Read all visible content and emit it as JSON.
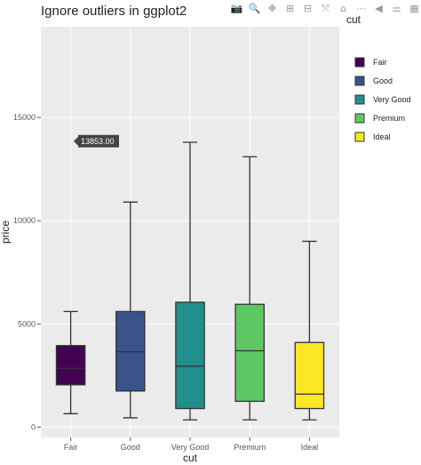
{
  "toolbar": {
    "buttons": [
      {
        "icon": "camera-icon",
        "glyph": "📷"
      },
      {
        "icon": "zoom-icon",
        "glyph": "🔍"
      },
      {
        "icon": "pan-icon",
        "glyph": "✥"
      },
      {
        "icon": "zoom-in-icon",
        "glyph": "⊞"
      },
      {
        "icon": "zoom-out-icon",
        "glyph": "⊟"
      },
      {
        "icon": "autoscale-icon",
        "glyph": "⤧"
      },
      {
        "icon": "reset-axes-icon",
        "glyph": "⌂"
      },
      {
        "icon": "spike-lines-icon",
        "glyph": "⋯"
      },
      {
        "icon": "hover-closest-icon",
        "glyph": "◀"
      },
      {
        "icon": "hover-compare-icon",
        "glyph": "⚌"
      },
      {
        "icon": "plotly-logo-icon",
        "glyph": "▦"
      }
    ]
  },
  "chart_data": {
    "type": "box",
    "title": "Ignore outliers in ggplot2",
    "xlabel": "cut",
    "ylabel": "price",
    "ylim": [
      -500,
      19400
    ],
    "yticks": [
      0,
      5000,
      10000,
      15000
    ],
    "ytick_labels": [
      "0",
      "5000",
      "10000",
      "15000"
    ],
    "grid": true,
    "legend": {
      "title": "cut",
      "placement": "right"
    },
    "tooltip": {
      "text": "13853.00",
      "category": "Fair",
      "value": 13853
    },
    "categories": [
      "Fair",
      "Good",
      "Very Good",
      "Premium",
      "Ideal"
    ],
    "boxes": [
      {
        "name": "Fair",
        "color": "#440154",
        "min": 650,
        "q1": 2050,
        "median": 2850,
        "q3": 3950,
        "max": 5600
      },
      {
        "name": "Good",
        "color": "#3B528B",
        "min": 450,
        "q1": 1750,
        "median": 3650,
        "q3": 5600,
        "max": 10900
      },
      {
        "name": "Very Good",
        "color": "#21908C",
        "min": 350,
        "q1": 900,
        "median": 2950,
        "q3": 6050,
        "max": 13800
      },
      {
        "name": "Premium",
        "color": "#5DC863",
        "min": 350,
        "q1": 1250,
        "median": 3700,
        "q3": 5950,
        "max": 13100
      },
      {
        "name": "Ideal",
        "color": "#FDE725",
        "min": 350,
        "q1": 900,
        "median": 1600,
        "q3": 4100,
        "max": 9000
      }
    ]
  }
}
